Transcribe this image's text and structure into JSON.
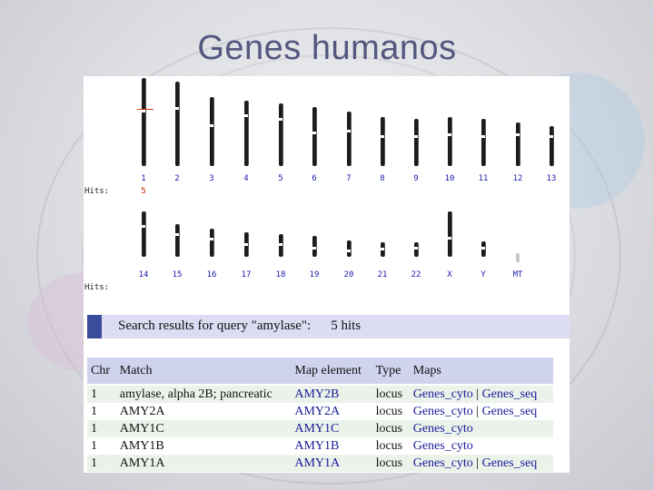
{
  "slide": {
    "title": "Genes humanos"
  },
  "ideogram": {
    "hits_label": "Hits:",
    "row1": [
      {
        "label": "1",
        "hits": "5"
      },
      {
        "label": "2",
        "hits": ""
      },
      {
        "label": "3",
        "hits": ""
      },
      {
        "label": "4",
        "hits": ""
      },
      {
        "label": "5",
        "hits": ""
      },
      {
        "label": "6",
        "hits": ""
      },
      {
        "label": "7",
        "hits": ""
      },
      {
        "label": "8",
        "hits": ""
      },
      {
        "label": "9",
        "hits": ""
      },
      {
        "label": "10",
        "hits": ""
      },
      {
        "label": "11",
        "hits": ""
      },
      {
        "label": "12",
        "hits": ""
      },
      {
        "label": "13",
        "hits": ""
      }
    ],
    "row2": [
      {
        "label": "14",
        "hits": ""
      },
      {
        "label": "15",
        "hits": ""
      },
      {
        "label": "16",
        "hits": ""
      },
      {
        "label": "17",
        "hits": ""
      },
      {
        "label": "18",
        "hits": ""
      },
      {
        "label": "19",
        "hits": ""
      },
      {
        "label": "20",
        "hits": ""
      },
      {
        "label": "21",
        "hits": ""
      },
      {
        "label": "22",
        "hits": ""
      },
      {
        "label": "X",
        "hits": ""
      },
      {
        "label": "Y",
        "hits": ""
      },
      {
        "label": "MT",
        "hits": ""
      }
    ]
  },
  "search": {
    "text": "Search results for query \"amylase\":",
    "hits": "5 hits"
  },
  "table": {
    "headers": [
      "Chr",
      "Match",
      "Map element",
      "Type",
      "Maps"
    ],
    "rows": [
      {
        "chr": "1",
        "match": "amylase, alpha 2B; pancreatic",
        "map_element": "AMY2B",
        "type": "locus",
        "maps": [
          "Genes_cyto",
          "Genes_seq"
        ]
      },
      {
        "chr": "1",
        "match": "AMY2A",
        "map_element": "AMY2A",
        "type": "locus",
        "maps": [
          "Genes_cyto",
          "Genes_seq"
        ]
      },
      {
        "chr": "1",
        "match": "AMY1C",
        "map_element": "AMY1C",
        "type": "locus",
        "maps": [
          "Genes_cyto"
        ]
      },
      {
        "chr": "1",
        "match": "AMY1B",
        "map_element": "AMY1B",
        "type": "locus",
        "maps": [
          "Genes_cyto"
        ]
      },
      {
        "chr": "1",
        "match": "AMY1A",
        "map_element": "AMY1A",
        "type": "locus",
        "maps": [
          "Genes_cyto",
          "Genes_seq"
        ]
      }
    ],
    "separator": "|"
  }
}
